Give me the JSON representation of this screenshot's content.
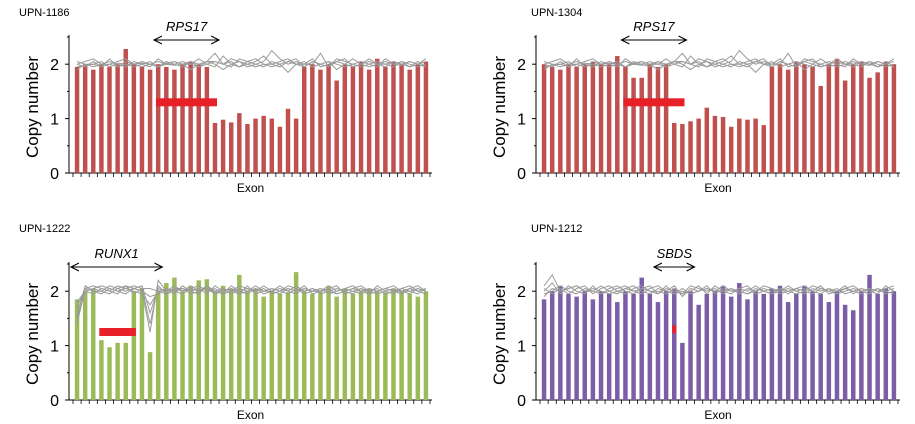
{
  "chart_data": [
    {
      "type": "bar",
      "title": "UPN-1186",
      "xlabel": "Exon",
      "ylabel": "Copy number",
      "ylim": [
        0,
        2.5
      ],
      "yticks": [
        "0",
        "1",
        "2"
      ],
      "bar_color": "#c0504d",
      "gene_label": "RPS17",
      "gene_span": [
        10,
        18
      ],
      "deletion_span": [
        10,
        18
      ],
      "deletion_copy_number": 1.3,
      "values": [
        1.95,
        2.0,
        1.9,
        2.0,
        1.95,
        2.0,
        2.28,
        2.0,
        1.95,
        1.9,
        2.0,
        1.95,
        1.9,
        2.0,
        2.05,
        2.0,
        1.95,
        0.92,
        0.98,
        0.93,
        1.1,
        0.9,
        1.0,
        1.05,
        1.0,
        0.85,
        1.18,
        1.0,
        1.95,
        2.0,
        1.9,
        2.0,
        1.7,
        2.0,
        1.95,
        2.05,
        1.9,
        2.1,
        1.95,
        2.05,
        2.0,
        1.9,
        2.0,
        2.05
      ],
      "reference_lines": [
        [
          2.0,
          2.05,
          2.1,
          2.0,
          2.0,
          1.95,
          2.0,
          2.0,
          2.02,
          2.0,
          2.05,
          2.0,
          1.98,
          2.0,
          2.05,
          2.0,
          2.05,
          2.2,
          2.0,
          2.1,
          2.05,
          1.95,
          2.0,
          2.05,
          2.25,
          2.1,
          2.0,
          2.05,
          2.0,
          2.0,
          2.2,
          1.95,
          2.05,
          2.0,
          1.95,
          2.0,
          2.1,
          2.0,
          2.0,
          2.05,
          2.0,
          1.95,
          2.0,
          2.05
        ],
        [
          1.95,
          1.98,
          2.0,
          2.05,
          1.95,
          2.02,
          2.0,
          1.95,
          2.0,
          2.05,
          1.95,
          2.02,
          2.05,
          2.0,
          1.9,
          2.0,
          2.05,
          2.0,
          1.9,
          2.0,
          2.05,
          2.0,
          1.95,
          2.0,
          2.0,
          2.05,
          2.1,
          2.0,
          2.05,
          1.95,
          2.0,
          2.05,
          1.9,
          2.0,
          2.1,
          2.0,
          1.95,
          2.0,
          2.05,
          2.0,
          1.98,
          2.05,
          2.0,
          2.1
        ],
        [
          2.05,
          2.0,
          1.95,
          2.0,
          2.05,
          2.0,
          1.95,
          2.05,
          2.0,
          1.95,
          2.1,
          2.0,
          2.0,
          2.05,
          2.0,
          2.1,
          2.0,
          1.95,
          2.15,
          2.0,
          1.95,
          2.05,
          2.1,
          2.0,
          1.95,
          2.0,
          1.85,
          2.0,
          1.95,
          2.05,
          2.0,
          1.95,
          2.1,
          2.05,
          2.0,
          1.95,
          2.0,
          2.05,
          2.0,
          1.95,
          2.05,
          2.0,
          1.95,
          2.0
        ],
        [
          2.0,
          1.95,
          2.05,
          1.95,
          2.0,
          2.05,
          2.1,
          2.0,
          1.95,
          2.0,
          1.95,
          2.05,
          2.0,
          1.95,
          2.05,
          1.95,
          2.0,
          2.05,
          2.0,
          1.95,
          2.1,
          2.05,
          2.0,
          1.95,
          2.05,
          2.0,
          2.05,
          2.1,
          1.95,
          2.05,
          2.0,
          2.05,
          2.0,
          1.95,
          2.0,
          2.05,
          2.0,
          1.95,
          2.1,
          2.0,
          2.05,
          1.95,
          2.05,
          1.95
        ],
        [
          1.9,
          2.0,
          2.0,
          1.95,
          2.1,
          1.95,
          2.05,
          2.0,
          2.05,
          2.0,
          1.95,
          2.0,
          2.05,
          2.0,
          2.0,
          1.95,
          2.05,
          2.05,
          2.0,
          2.05,
          1.95,
          2.0,
          2.05,
          2.15,
          2.0,
          1.95,
          2.05,
          2.0,
          2.0,
          2.1,
          1.95,
          2.0,
          2.05,
          2.1,
          1.95,
          2.0,
          2.05,
          2.0,
          1.95,
          2.05,
          2.0,
          2.05,
          2.0,
          1.95
        ]
      ]
    },
    {
      "type": "bar",
      "title": "UPN-1304",
      "xlabel": "Exon",
      "ylabel": "Copy number",
      "ylim": [
        0,
        2.5
      ],
      "yticks": [
        "0",
        "1",
        "2"
      ],
      "bar_color": "#c0504d",
      "gene_label": "RPS17",
      "gene_span": [
        10,
        18
      ],
      "deletion_span": [
        10,
        18
      ],
      "deletion_copy_number": 1.3,
      "values": [
        2.0,
        1.95,
        1.9,
        2.0,
        1.95,
        2.0,
        2.05,
        2.0,
        2.0,
        2.15,
        1.95,
        1.75,
        1.75,
        2.0,
        1.95,
        2.0,
        0.92,
        0.9,
        0.95,
        1.0,
        1.2,
        1.05,
        1.03,
        0.85,
        1.0,
        0.98,
        1.0,
        0.88,
        1.95,
        2.0,
        1.9,
        2.05,
        2.0,
        1.95,
        1.6,
        2.0,
        2.1,
        1.7,
        2.0,
        2.05,
        1.75,
        1.85,
        2.05,
        2.0
      ],
      "reference_lines": [
        [
          2.0,
          2.05,
          2.1,
          2.0,
          2.0,
          1.95,
          2.0,
          2.0,
          2.02,
          2.0,
          2.05,
          2.0,
          1.98,
          2.0,
          2.05,
          2.0,
          2.05,
          2.2,
          2.0,
          2.1,
          2.05,
          1.95,
          2.0,
          2.05,
          2.25,
          2.1,
          2.0,
          2.05,
          2.0,
          2.0,
          2.2,
          1.95,
          2.05,
          2.0,
          1.95,
          2.0,
          2.1,
          2.0,
          2.0,
          2.05,
          2.0,
          1.95,
          2.0,
          2.05
        ],
        [
          1.95,
          1.98,
          2.0,
          2.05,
          1.95,
          2.02,
          2.0,
          1.95,
          2.0,
          2.05,
          1.95,
          2.02,
          2.05,
          2.0,
          1.9,
          2.0,
          2.05,
          2.0,
          1.9,
          2.0,
          2.05,
          2.0,
          1.95,
          2.0,
          2.0,
          2.05,
          2.1,
          2.0,
          2.05,
          1.95,
          2.0,
          2.05,
          1.9,
          2.0,
          2.1,
          2.0,
          1.95,
          2.0,
          2.05,
          2.0,
          1.98,
          2.05,
          2.0,
          2.1
        ],
        [
          2.05,
          2.0,
          1.95,
          2.0,
          2.05,
          2.0,
          1.95,
          2.05,
          2.0,
          1.95,
          2.1,
          2.0,
          2.0,
          2.05,
          2.0,
          2.1,
          2.0,
          1.95,
          2.15,
          2.0,
          1.95,
          2.05,
          2.1,
          2.0,
          1.95,
          2.0,
          1.85,
          2.0,
          1.95,
          2.05,
          2.0,
          1.95,
          2.1,
          2.05,
          2.0,
          1.95,
          2.0,
          2.05,
          2.0,
          1.95,
          2.05,
          2.0,
          1.95,
          2.0
        ],
        [
          2.0,
          1.95,
          2.05,
          1.95,
          2.0,
          2.05,
          2.1,
          2.0,
          1.95,
          2.0,
          1.95,
          2.05,
          2.0,
          1.95,
          2.05,
          1.95,
          2.0,
          2.05,
          2.0,
          1.95,
          2.1,
          2.05,
          2.0,
          1.95,
          2.05,
          2.0,
          2.05,
          2.1,
          1.95,
          2.05,
          2.0,
          2.05,
          2.0,
          1.95,
          2.0,
          2.05,
          2.0,
          1.95,
          2.1,
          2.0,
          2.05,
          1.95,
          2.05,
          1.95
        ],
        [
          1.9,
          2.0,
          2.0,
          1.95,
          2.1,
          1.95,
          2.05,
          2.0,
          2.05,
          2.0,
          1.95,
          2.0,
          2.05,
          2.0,
          2.0,
          1.95,
          2.05,
          2.05,
          2.0,
          2.05,
          1.95,
          2.0,
          2.05,
          2.15,
          2.0,
          1.95,
          2.05,
          2.0,
          2.0,
          2.1,
          1.95,
          2.0,
          2.05,
          2.1,
          1.95,
          2.0,
          2.05,
          2.0,
          1.95,
          2.05,
          2.0,
          2.05,
          2.0,
          1.95
        ]
      ]
    },
    {
      "type": "bar",
      "title": "UPN-1222",
      "xlabel": "Exon",
      "ylabel": "Copy number",
      "ylim": [
        0,
        2.5
      ],
      "yticks": [
        "0",
        "1",
        "2"
      ],
      "bar_color": "#9bbb59",
      "gene_label": "RUNX1",
      "gene_span": [
        0,
        11
      ],
      "deletion_span": [
        3,
        8
      ],
      "deletion_copy_number": 1.25,
      "values": [
        1.85,
        2.0,
        2.05,
        1.1,
        0.97,
        1.05,
        1.05,
        2.0,
        2.05,
        0.88,
        2.0,
        2.15,
        2.25,
        2.0,
        2.1,
        2.2,
        2.22,
        2.0,
        2.1,
        2.05,
        2.3,
        2.0,
        2.05,
        1.9,
        2.0,
        1.95,
        1.98,
        2.35,
        2.0,
        1.95,
        2.0,
        2.1,
        1.9,
        2.05,
        1.95,
        2.0,
        2.05,
        2.0,
        1.98,
        2.05,
        2.0,
        1.95,
        1.9,
        2.0
      ],
      "reference_lines": [
        [
          1.4,
          2.05,
          2.1,
          2.05,
          2.0,
          1.95,
          2.1,
          2.05,
          2.0,
          1.25,
          2.2,
          2.0,
          2.05,
          2.0,
          2.1,
          2.0,
          2.05,
          1.95,
          2.0,
          2.05,
          2.0,
          1.95,
          2.05,
          2.0,
          2.0,
          2.1,
          2.0,
          1.95,
          2.05,
          2.0,
          2.0,
          2.05,
          1.95,
          2.0,
          2.05,
          2.0,
          1.95,
          2.0,
          2.05,
          2.0,
          2.0,
          1.95,
          2.05,
          2.0
        ],
        [
          1.5,
          2.0,
          2.05,
          2.1,
          2.05,
          2.0,
          2.05,
          2.1,
          2.05,
          1.4,
          2.1,
          1.95,
          2.0,
          2.05,
          2.0,
          1.95,
          2.1,
          2.0,
          2.05,
          1.95,
          2.05,
          2.0,
          2.05,
          1.95,
          2.0,
          2.05,
          2.0,
          2.1,
          2.0,
          2.05,
          1.95,
          2.0,
          2.05,
          2.0,
          1.95,
          2.05,
          2.0,
          2.05,
          1.95,
          2.0,
          2.05,
          2.0,
          2.05,
          2.0
        ],
        [
          1.55,
          2.1,
          2.0,
          2.0,
          2.1,
          2.05,
          2.0,
          2.05,
          2.1,
          1.6,
          2.05,
          2.0,
          2.1,
          2.0,
          2.05,
          2.1,
          2.0,
          2.05,
          1.95,
          2.0,
          2.1,
          2.05,
          2.0,
          2.05,
          1.95,
          2.0,
          2.05,
          2.0,
          2.05,
          2.0,
          2.05,
          1.95,
          2.0,
          2.05,
          2.0,
          1.95,
          2.05,
          2.0,
          2.05,
          2.0,
          1.95,
          2.05,
          2.0,
          2.05
        ],
        [
          1.6,
          2.0,
          1.95,
          2.05,
          2.0,
          2.1,
          2.05,
          2.0,
          1.95,
          1.75,
          2.0,
          2.05,
          1.95,
          2.1,
          2.0,
          2.05,
          1.95,
          2.1,
          2.0,
          2.05,
          1.95,
          2.1,
          1.95,
          2.0,
          2.05,
          2.0,
          2.1,
          2.05,
          1.95,
          2.0,
          2.05,
          2.0,
          1.95,
          2.0,
          2.05,
          2.1,
          2.0,
          1.95,
          2.0,
          2.05,
          2.0,
          2.0,
          1.95,
          2.05
        ],
        [
          1.7,
          2.05,
          2.0,
          1.95,
          2.05,
          2.0,
          1.95,
          2.05,
          2.0,
          1.9,
          1.95,
          2.05,
          2.0,
          1.95,
          2.05,
          2.0,
          2.05,
          2.0,
          1.95,
          2.1,
          2.0,
          2.05,
          2.0,
          2.1,
          2.0,
          1.95,
          2.05,
          2.0,
          2.1,
          1.95,
          2.0,
          2.05,
          2.1,
          1.95,
          2.0,
          2.05,
          1.95,
          2.1,
          2.0,
          1.95,
          2.05,
          2.1,
          2.0,
          1.95
        ],
        [
          1.8,
          2.0,
          2.05,
          2.0,
          1.95,
          2.05,
          2.1,
          1.95,
          2.05,
          2.05,
          2.0,
          1.95,
          2.05,
          2.05,
          1.95,
          2.0,
          2.1,
          1.95,
          2.05,
          2.0,
          1.95,
          2.0,
          2.1,
          2.0,
          2.05,
          2.0,
          1.95,
          2.05,
          2.0,
          2.05,
          2.0,
          2.1,
          2.0,
          2.05,
          2.1,
          2.0,
          2.05,
          2.0,
          2.05,
          2.1,
          2.0,
          2.05,
          2.1,
          2.0
        ]
      ]
    },
    {
      "type": "bar",
      "title": "UPN-1212",
      "xlabel": "Exon",
      "ylabel": "Copy number",
      "ylim": [
        0,
        2.5
      ],
      "yticks": [
        "0",
        "1",
        "2"
      ],
      "bar_color": "#7b5ea7",
      "gene_label": "SBDS",
      "gene_span": [
        14,
        19
      ],
      "deletion_span": [
        16,
        17
      ],
      "deletion_copy_number": 1.3,
      "values": [
        1.85,
        2.0,
        2.1,
        1.95,
        1.9,
        2.0,
        1.85,
        2.0,
        1.95,
        1.8,
        2.0,
        1.95,
        2.25,
        1.95,
        1.8,
        2.0,
        2.05,
        1.05,
        2.0,
        1.75,
        1.95,
        2.0,
        2.1,
        1.9,
        2.15,
        1.85,
        2.0,
        1.95,
        2.05,
        2.1,
        1.8,
        1.95,
        2.1,
        2.0,
        1.95,
        1.8,
        2.0,
        1.75,
        1.65,
        2.0,
        2.3,
        1.95,
        2.05,
        2.0
      ],
      "reference_lines": [
        [
          2.1,
          2.3,
          2.0,
          2.05,
          2.1,
          2.0,
          2.05,
          2.0,
          1.95,
          2.0,
          2.05,
          2.0,
          1.95,
          2.05,
          2.1,
          2.0,
          1.95,
          2.05,
          1.95,
          2.0,
          2.05,
          2.0,
          2.0,
          1.95,
          2.05,
          2.0,
          2.1,
          2.0,
          1.95,
          2.0,
          2.05,
          2.0,
          1.95,
          2.05,
          2.0,
          2.05,
          1.95,
          2.0,
          2.05,
          2.0,
          1.95,
          2.05,
          2.0,
          2.05
        ],
        [
          2.0,
          2.15,
          1.95,
          2.1,
          2.0,
          1.95,
          2.1,
          1.95,
          2.05,
          2.1,
          2.0,
          1.95,
          2.05,
          2.0,
          1.95,
          2.05,
          2.0,
          1.95,
          2.1,
          2.05,
          2.0,
          2.05,
          1.95,
          2.05,
          2.0,
          1.95,
          2.0,
          2.05,
          2.0,
          2.05,
          1.95,
          2.05,
          2.0,
          1.95,
          2.05,
          2.0,
          2.05,
          1.95,
          2.0,
          2.05,
          2.0,
          2.05,
          1.95,
          2.0
        ],
        [
          1.95,
          2.0,
          2.1,
          2.0,
          1.95,
          2.05,
          2.0,
          2.1,
          2.0,
          1.95,
          2.05,
          2.1,
          2.0,
          1.95,
          2.05,
          2.0,
          2.1,
          1.9,
          2.05,
          2.0,
          2.1,
          1.95,
          2.05,
          2.0,
          2.05,
          2.1,
          1.95,
          2.0,
          2.05,
          2.0,
          2.1,
          2.0,
          2.05,
          2.0,
          2.1,
          1.95,
          2.0,
          2.05,
          2.0,
          1.95,
          2.05,
          2.0,
          2.05,
          2.1
        ],
        [
          2.05,
          1.95,
          2.05,
          1.95,
          2.05,
          2.1,
          1.95,
          2.05,
          2.1,
          2.0,
          1.95,
          2.05,
          2.1,
          2.0,
          2.0,
          1.95,
          2.05,
          1.95,
          2.0,
          2.1,
          1.95,
          2.1,
          2.0,
          2.05,
          1.95,
          2.05,
          2.0,
          2.1,
          2.05,
          1.95,
          2.0,
          2.05,
          2.1,
          2.0,
          1.95,
          2.05,
          2.0,
          2.1,
          1.95,
          2.05,
          2.0,
          1.95,
          2.1,
          2.0
        ],
        [
          1.9,
          2.05,
          2.0,
          2.05,
          2.1,
          2.0,
          2.0,
          1.95,
          2.0,
          2.05,
          2.1,
          2.0,
          2.05,
          2.1,
          1.95,
          2.1,
          1.95,
          2.0,
          1.95,
          2.0,
          2.05,
          2.0,
          2.1,
          2.0,
          2.0,
          1.95,
          2.05,
          2.0,
          1.95,
          2.05,
          2.0,
          1.95,
          2.0,
          2.1,
          2.05,
          2.0,
          1.95,
          2.05,
          2.1,
          2.0,
          2.05,
          2.0,
          2.0,
          1.95
        ]
      ]
    }
  ]
}
